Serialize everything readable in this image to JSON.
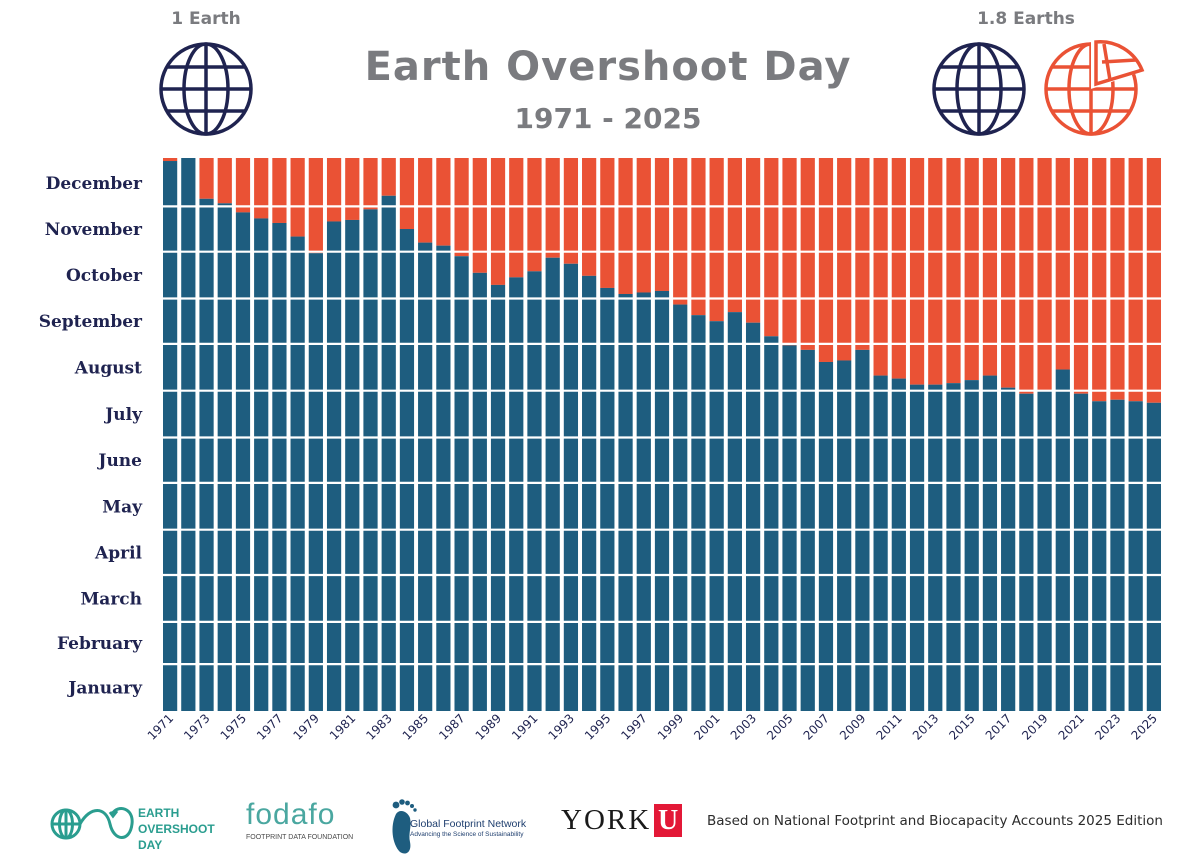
{
  "header": {
    "title": "Earth Overshoot Day",
    "subtitle": "1971 - 2025",
    "one_earth_label": "1 Earth",
    "more_earths_label": "1.8 Earths"
  },
  "colors": {
    "overshoot": "#ea5235",
    "budget": "#1e5d7f",
    "title_gray": "#7a7b7f",
    "month_label": "#1f2350",
    "globe_navy": "#1f2350",
    "globe_red": "#ea5235",
    "eod_green": "#2a9d8f",
    "york_red": "#e31837"
  },
  "chart_data": {
    "type": "bar",
    "stacked": true,
    "title": "Earth Overshoot Day",
    "subtitle": "1971 - 2025",
    "y_tick_labels": [
      "January",
      "February",
      "March",
      "April",
      "May",
      "June",
      "July",
      "August",
      "September",
      "October",
      "November",
      "December"
    ],
    "x_tick_labels": [
      "1971",
      "1973",
      "1975",
      "1977",
      "1979",
      "1981",
      "1983",
      "1985",
      "1987",
      "1989",
      "1991",
      "1993",
      "1995",
      "1997",
      "1999",
      "2001",
      "2003",
      "2005",
      "2007",
      "2009",
      "2011",
      "2013",
      "2015",
      "2017",
      "2019",
      "2021",
      "2023",
      "2025"
    ],
    "x_start": 1971,
    "day_of_year": [
      {
        "year": 1971,
        "doy": 364
      },
      {
        "year": 1972,
        "doy": 366
      },
      {
        "year": 1973,
        "doy": 339
      },
      {
        "year": 1974,
        "doy": 336
      },
      {
        "year": 1975,
        "doy": 330
      },
      {
        "year": 1976,
        "doy": 326
      },
      {
        "year": 1977,
        "doy": 323
      },
      {
        "year": 1978,
        "doy": 314
      },
      {
        "year": 1979,
        "doy": 303
      },
      {
        "year": 1980,
        "doy": 324
      },
      {
        "year": 1981,
        "doy": 325
      },
      {
        "year": 1982,
        "doy": 332
      },
      {
        "year": 1983,
        "doy": 341
      },
      {
        "year": 1984,
        "doy": 319
      },
      {
        "year": 1985,
        "doy": 310
      },
      {
        "year": 1986,
        "doy": 308
      },
      {
        "year": 1987,
        "doy": 301
      },
      {
        "year": 1988,
        "doy": 290
      },
      {
        "year": 1989,
        "doy": 282
      },
      {
        "year": 1990,
        "doy": 287
      },
      {
        "year": 1991,
        "doy": 291
      },
      {
        "year": 1992,
        "doy": 300
      },
      {
        "year": 1993,
        "doy": 296
      },
      {
        "year": 1994,
        "doy": 288
      },
      {
        "year": 1995,
        "doy": 280
      },
      {
        "year": 1996,
        "doy": 276
      },
      {
        "year": 1997,
        "doy": 277
      },
      {
        "year": 1998,
        "doy": 278
      },
      {
        "year": 1999,
        "doy": 269
      },
      {
        "year": 2000,
        "doy": 262
      },
      {
        "year": 2001,
        "doy": 258
      },
      {
        "year": 2002,
        "doy": 264
      },
      {
        "year": 2003,
        "doy": 257
      },
      {
        "year": 2004,
        "doy": 248
      },
      {
        "year": 2005,
        "doy": 242
      },
      {
        "year": 2006,
        "doy": 239
      },
      {
        "year": 2007,
        "doy": 231
      },
      {
        "year": 2008,
        "doy": 232
      },
      {
        "year": 2009,
        "doy": 239
      },
      {
        "year": 2010,
        "doy": 222
      },
      {
        "year": 2011,
        "doy": 220
      },
      {
        "year": 2012,
        "doy": 216
      },
      {
        "year": 2013,
        "doy": 216
      },
      {
        "year": 2014,
        "doy": 217
      },
      {
        "year": 2015,
        "doy": 219
      },
      {
        "year": 2016,
        "doy": 222
      },
      {
        "year": 2017,
        "doy": 214
      },
      {
        "year": 2018,
        "doy": 210
      },
      {
        "year": 2019,
        "doy": 212
      },
      {
        "year": 2020,
        "doy": 226
      },
      {
        "year": 2021,
        "doy": 210
      },
      {
        "year": 2022,
        "doy": 205
      },
      {
        "year": 2023,
        "doy": 206
      },
      {
        "year": 2024,
        "doy": 205
      },
      {
        "year": 2025,
        "doy": 204
      }
    ],
    "series": [
      {
        "color": "#1e5d7f"
      },
      {
        "color": "#ea5235"
      }
    ],
    "ylim": [
      1,
      366
    ],
    "grid": true,
    "legend": "none"
  },
  "footer": {
    "eod_logo_lines": [
      "EARTH",
      "OVERSHOOT",
      "DAY"
    ],
    "fodafo_logo": "fodafo",
    "fodafo_tagline": "FOOTPRINT DATA FOUNDATION",
    "gfn_name": "Global Footprint Network",
    "gfn_tagline": "Advancing the Science of Sustainability",
    "york_text": "YORK",
    "york_mark": "U",
    "credits": "Based on National Footprint and Biocapacity Accounts 2025 Edition"
  }
}
